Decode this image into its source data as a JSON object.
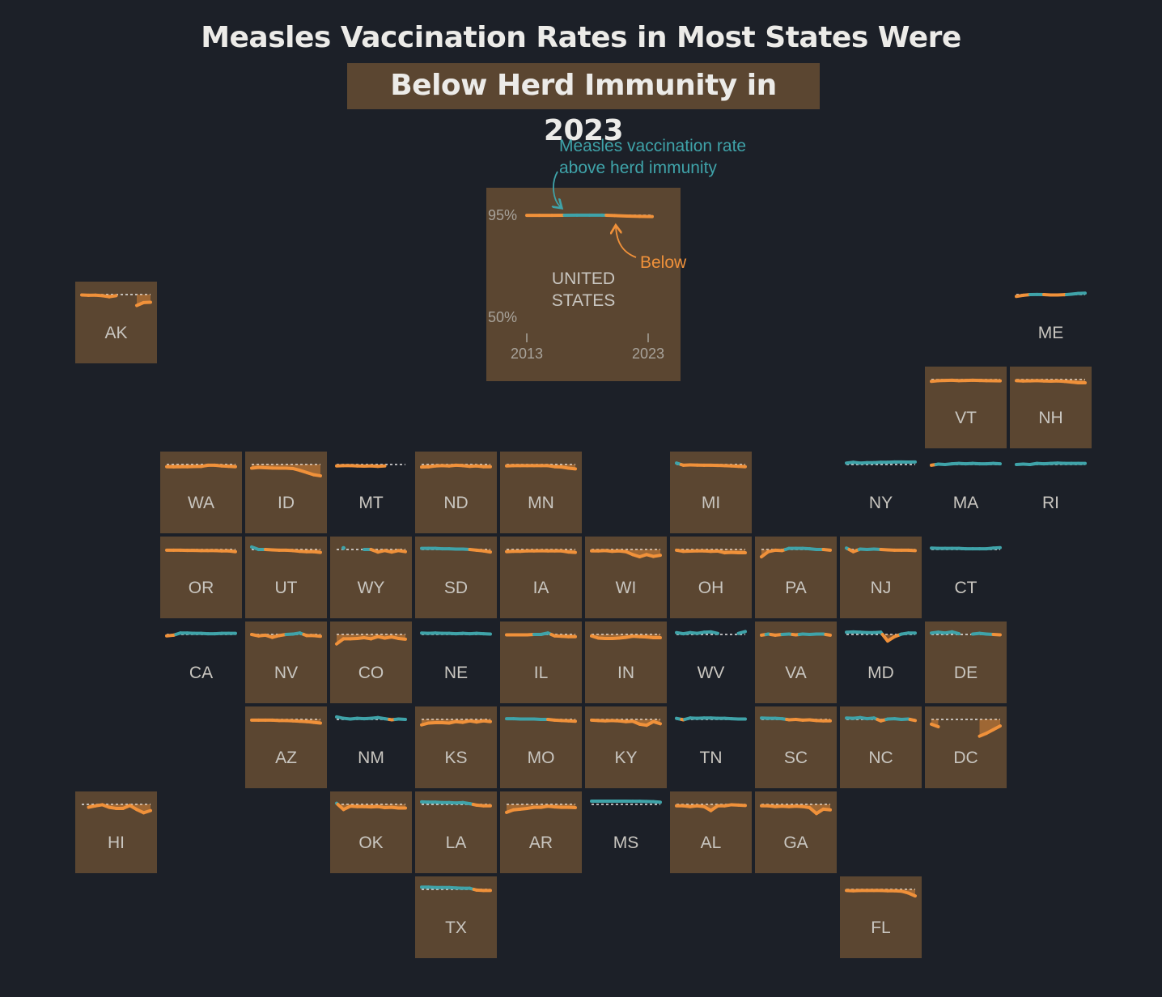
{
  "title_line1": "Measles Vaccination Rates in Most States Were",
  "title_line2": "Below Herd Immunity in 2023",
  "colors": {
    "background": "#1c2028",
    "tile_below": "#5b4631",
    "line_below": "#f0913a",
    "line_above": "#3fa3a9",
    "threshold": "#e6e6e6",
    "label": "#c9c6c0"
  },
  "chart_data": {
    "type": "line",
    "layout": "tile-grid map of US states, one small multiple per state",
    "threshold": 95,
    "ylim": [
      50,
      100
    ],
    "x": [
      2013,
      2014,
      2015,
      2016,
      2017,
      2018,
      2019,
      2020,
      2021,
      2022,
      2023
    ],
    "legend": {
      "above_label": "Measles vaccination rate above herd immunity",
      "below_label": "Below",
      "y_top_label": "95%",
      "y_bottom_label": "50%",
      "x_start_label": "2013",
      "x_end_label": "2023"
    },
    "national": {
      "name": "UNITED STATES",
      "line1": "UNITED",
      "line2": "STATES",
      "below_2023": true,
      "values": [
        94.8,
        94.8,
        94.9,
        95.0,
        95.1,
        95.1,
        95.2,
        94.6,
        93.9,
        93.5,
        93.2
      ]
    },
    "states": [
      {
        "code": "AK",
        "col": 0,
        "row": 0,
        "below_2023": true,
        "values": [
          94.5,
          94.0,
          94.2,
          93.5,
          92.0,
          93.5,
          null,
          null,
          80.0,
          84.0,
          84.5
        ]
      },
      {
        "code": "ME",
        "col": 11,
        "row": 0,
        "below_2023": false,
        "values": [
          92.5,
          94.0,
          95.0,
          95.2,
          95.0,
          94.5,
          94.5,
          94.8,
          95.5,
          96.5,
          97.0
        ]
      },
      {
        "code": "VT",
        "col": 10,
        "row": 1,
        "below_2023": true,
        "values": [
          92.5,
          93.5,
          93.8,
          94.0,
          93.5,
          93.8,
          94.0,
          93.7,
          93.5,
          93.3,
          93.2
        ]
      },
      {
        "code": "NH",
        "col": 11,
        "row": 1,
        "below_2023": true,
        "values": [
          93.5,
          93.0,
          93.2,
          93.5,
          93.0,
          92.8,
          93.0,
          92.5,
          91.5,
          90.5,
          90.5
        ]
      },
      {
        "code": "WA",
        "col": 1,
        "row": 2,
        "below_2023": true,
        "values": [
          92.0,
          91.8,
          92.0,
          92.0,
          92.2,
          92.3,
          94.0,
          94.0,
          93.0,
          92.5,
          92.0
        ]
      },
      {
        "code": "ID",
        "col": 2,
        "row": 2,
        "below_2023": true,
        "values": [
          90.0,
          91.0,
          90.5,
          90.2,
          90.0,
          90.0,
          89.5,
          87.0,
          84.0,
          81.0,
          79.5
        ]
      },
      {
        "code": "MT",
        "col": 3,
        "row": 2,
        "below_2023": false,
        "values": [
          93.0,
          93.5,
          93.5,
          93.0,
          92.8,
          93.0,
          92.5,
          93.0,
          null,
          null,
          null
        ]
      },
      {
        "code": "ND",
        "col": 4,
        "row": 2,
        "below_2023": true,
        "values": [
          91.5,
          91.8,
          93.0,
          93.5,
          93.0,
          94.0,
          93.5,
          92.5,
          93.0,
          92.0,
          92.0
        ]
      },
      {
        "code": "MN",
        "col": 5,
        "row": 2,
        "below_2023": true,
        "values": [
          93.0,
          93.5,
          93.5,
          93.5,
          93.5,
          93.5,
          93.5,
          92.0,
          91.5,
          90.0,
          89.0
        ]
      },
      {
        "code": "MI",
        "col": 7,
        "row": 2,
        "below_2023": true,
        "values": [
          97.0,
          94.0,
          94.5,
          94.2,
          94.0,
          94.0,
          93.8,
          93.5,
          93.0,
          92.5,
          92.0
        ]
      },
      {
        "code": "NY",
        "col": 9,
        "row": 2,
        "below_2023": false,
        "values": [
          97.0,
          98.0,
          97.0,
          97.5,
          97.5,
          98.0,
          98.0,
          98.5,
          98.5,
          98.3,
          98.5
        ]
      },
      {
        "code": "MA",
        "col": 10,
        "row": 2,
        "below_2023": false,
        "values": [
          94.0,
          95.5,
          95.0,
          96.0,
          96.5,
          96.0,
          96.5,
          96.0,
          96.0,
          96.5,
          96.0
        ]
      },
      {
        "code": "RI",
        "col": 11,
        "row": 2,
        "below_2023": false,
        "values": [
          95.0,
          95.5,
          95.0,
          96.5,
          96.0,
          96.5,
          97.0,
          96.5,
          96.5,
          96.5,
          96.5
        ]
      },
      {
        "code": "OR",
        "col": 1,
        "row": 3,
        "below_2023": true,
        "values": [
          94.0,
          94.0,
          94.0,
          93.8,
          93.8,
          93.5,
          93.5,
          93.5,
          93.0,
          93.0,
          92.0
        ]
      },
      {
        "code": "UT",
        "col": 2,
        "row": 3,
        "below_2023": true,
        "values": [
          98.5,
          95.0,
          95.0,
          94.5,
          94.0,
          94.0,
          93.5,
          92.5,
          92.0,
          92.0,
          91.0
        ]
      },
      {
        "code": "WY",
        "col": 3,
        "row": 3,
        "below_2023": true,
        "values": [
          null,
          97.0,
          null,
          null,
          95.0,
          95.0,
          91.5,
          93.5,
          91.5,
          93.5,
          92.0
        ]
      },
      {
        "code": "SD",
        "col": 4,
        "row": 3,
        "below_2023": true,
        "values": [
          96.5,
          96.5,
          96.5,
          96.0,
          96.0,
          95.5,
          95.5,
          95.0,
          94.0,
          93.0,
          91.5
        ]
      },
      {
        "code": "IA",
        "col": 5,
        "row": 3,
        "below_2023": true,
        "values": [
          92.0,
          92.5,
          92.5,
          93.0,
          93.0,
          93.2,
          93.0,
          93.0,
          93.0,
          91.5,
          91.0
        ]
      },
      {
        "code": "WI",
        "col": 6,
        "row": 3,
        "below_2023": true,
        "values": [
          93.0,
          93.0,
          93.5,
          92.5,
          93.0,
          92.0,
          88.0,
          85.0,
          88.0,
          85.5,
          87.0
        ]
      },
      {
        "code": "OH",
        "col": 7,
        "row": 3,
        "below_2023": true,
        "values": [
          94.0,
          92.5,
          92.8,
          93.0,
          93.0,
          92.5,
          92.8,
          90.5,
          91.0,
          90.5,
          90.5
        ]
      },
      {
        "code": "PA",
        "col": 8,
        "row": 3,
        "below_2023": true,
        "values": [
          85.0,
          92.0,
          94.0,
          93.5,
          96.5,
          96.5,
          96.5,
          96.0,
          95.0,
          95.0,
          94.0
        ]
      },
      {
        "code": "NJ",
        "col": 9,
        "row": 3,
        "below_2023": true,
        "values": [
          97.0,
          92.0,
          95.5,
          95.0,
          95.5,
          95.0,
          94.5,
          94.0,
          94.0,
          94.0,
          93.5
        ]
      },
      {
        "code": "CT",
        "col": 10,
        "row": 3,
        "below_2023": false,
        "values": [
          97.0,
          96.5,
          96.5,
          96.5,
          96.5,
          96.0,
          96.0,
          96.0,
          96.0,
          97.0,
          97.5
        ]
      },
      {
        "code": "CA",
        "col": 1,
        "row": 4,
        "below_2023": false,
        "values": [
          93.0,
          94.0,
          97.0,
          97.0,
          96.5,
          96.5,
          96.0,
          96.0,
          96.5,
          96.5,
          96.5
        ]
      },
      {
        "code": "NV",
        "col": 2,
        "row": 4,
        "below_2023": true,
        "values": [
          95.0,
          93.0,
          94.0,
          91.0,
          93.5,
          95.0,
          95.5,
          97.0,
          93.5,
          93.5,
          92.5
        ]
      },
      {
        "code": "CO",
        "col": 3,
        "row": 4,
        "below_2023": true,
        "values": [
          82.0,
          89.0,
          89.0,
          89.5,
          90.5,
          89.0,
          92.0,
          90.0,
          91.5,
          89.5,
          88.5
        ]
      },
      {
        "code": "NE",
        "col": 4,
        "row": 4,
        "below_2023": false,
        "values": [
          97.0,
          96.5,
          97.0,
          96.5,
          96.5,
          96.0,
          96.5,
          96.0,
          96.5,
          96.0,
          95.5
        ]
      },
      {
        "code": "IL",
        "col": 5,
        "row": 4,
        "below_2023": true,
        "values": [
          94.5,
          94.5,
          94.5,
          94.5,
          95.0,
          95.0,
          97.0,
          93.0,
          92.5,
          92.0,
          92.0
        ]
      },
      {
        "code": "IN",
        "col": 6,
        "row": 4,
        "below_2023": true,
        "values": [
          93.0,
          90.0,
          89.5,
          89.5,
          90.0,
          91.0,
          92.5,
          92.0,
          91.5,
          90.5,
          90.5
        ]
      },
      {
        "code": "WV",
        "col": 7,
        "row": 4,
        "below_2023": false,
        "values": [
          97.5,
          96.0,
          97.5,
          96.5,
          98.0,
          98.5,
          96.5,
          null,
          null,
          96.5,
          99.0
        ]
      },
      {
        "code": "VA",
        "col": 8,
        "row": 4,
        "below_2023": true,
        "values": [
          94.0,
          95.5,
          94.0,
          95.0,
          95.5,
          94.5,
          95.5,
          95.0,
          95.5,
          95.5,
          94.0
        ]
      },
      {
        "code": "MD",
        "col": 9,
        "row": 4,
        "below_2023": false,
        "values": [
          98.0,
          98.5,
          98.0,
          97.5,
          97.5,
          98.0,
          86.0,
          92.0,
          95.5,
          97.0,
          97.0
        ]
      },
      {
        "code": "DE",
        "col": 10,
        "row": 4,
        "below_2023": true,
        "values": [
          97.0,
          98.0,
          97.0,
          98.5,
          96.0,
          null,
          95.5,
          96.5,
          95.5,
          95.0,
          94.5
        ]
      },
      {
        "code": "AZ",
        "col": 2,
        "row": 5,
        "below_2023": true,
        "values": [
          94.0,
          94.0,
          94.0,
          94.0,
          93.5,
          93.5,
          93.0,
          92.5,
          92.0,
          91.0,
          90.0
        ]
      },
      {
        "code": "NM",
        "col": 3,
        "row": 5,
        "below_2023": false,
        "values": [
          98.5,
          96.5,
          95.5,
          96.5,
          96.0,
          96.5,
          97.5,
          96.0,
          94.5,
          95.5,
          95.0
        ]
      },
      {
        "code": "KS",
        "col": 4,
        "row": 5,
        "below_2023": true,
        "values": [
          87.5,
          90.0,
          90.5,
          90.5,
          90.0,
          92.0,
          91.0,
          93.0,
          91.5,
          93.0,
          92.0
        ]
      },
      {
        "code": "MO",
        "col": 5,
        "row": 5,
        "below_2023": true,
        "values": [
          96.0,
          96.0,
          95.5,
          95.5,
          95.5,
          95.0,
          95.0,
          94.0,
          93.5,
          93.0,
          92.5
        ]
      },
      {
        "code": "KY",
        "col": 6,
        "row": 5,
        "below_2023": true,
        "values": [
          94.0,
          93.5,
          93.0,
          93.5,
          93.0,
          92.0,
          92.5,
          88.5,
          87.0,
          92.0,
          89.0
        ]
      },
      {
        "code": "TN",
        "col": 7,
        "row": 5,
        "below_2023": false,
        "values": [
          96.5,
          94.5,
          97.0,
          96.5,
          97.0,
          97.0,
          96.5,
          96.5,
          96.0,
          95.5,
          95.5
        ]
      },
      {
        "code": "SC",
        "col": 8,
        "row": 5,
        "below_2023": true,
        "values": [
          97.0,
          96.5,
          96.5,
          96.0,
          94.5,
          95.0,
          94.0,
          94.5,
          93.5,
          93.0,
          93.0
        ]
      },
      {
        "code": "NC",
        "col": 9,
        "row": 5,
        "below_2023": true,
        "values": [
          97.0,
          96.5,
          97.5,
          96.0,
          97.0,
          93.0,
          95.5,
          96.0,
          95.0,
          95.5,
          93.5
        ]
      },
      {
        "code": "DC",
        "col": 10,
        "row": 5,
        "below_2023": true,
        "values": [
          88.5,
          85.0,
          null,
          null,
          null,
          null,
          null,
          72.0,
          76.0,
          81.0,
          86.0
        ]
      },
      {
        "code": "HI",
        "col": 0,
        "row": 6,
        "below_2023": true,
        "values": [
          null,
          91.0,
          93.0,
          94.5,
          91.0,
          89.5,
          89.5,
          93.5,
          88.0,
          83.5,
          86.5
        ]
      },
      {
        "code": "OK",
        "col": 3,
        "row": 6,
        "below_2023": true,
        "values": [
          96.5,
          88.0,
          92.5,
          92.0,
          92.0,
          91.5,
          92.0,
          90.5,
          91.0,
          90.0,
          90.0
        ]
      },
      {
        "code": "LA",
        "col": 4,
        "row": 6,
        "below_2023": true,
        "values": [
          98.5,
          98.0,
          98.0,
          97.5,
          97.5,
          97.0,
          97.5,
          96.0,
          94.0,
          93.0,
          93.0
        ]
      },
      {
        "code": "AR",
        "col": 5,
        "row": 6,
        "below_2023": true,
        "values": [
          84.0,
          87.5,
          88.5,
          89.5,
          91.0,
          91.0,
          92.5,
          91.5,
          91.0,
          91.0,
          90.5
        ]
      },
      {
        "code": "MS",
        "col": 6,
        "row": 6,
        "below_2023": false,
        "values": [
          99.5,
          99.5,
          99.5,
          99.5,
          99.5,
          99.5,
          99.3,
          99.3,
          99.0,
          98.7,
          98.0
        ]
      },
      {
        "code": "AL",
        "col": 7,
        "row": 6,
        "below_2023": true,
        "values": [
          93.0,
          93.0,
          92.0,
          93.0,
          92.0,
          86.5,
          93.0,
          93.0,
          94.5,
          94.0,
          93.5
        ]
      },
      {
        "code": "GA",
        "col": 8,
        "row": 6,
        "below_2023": true,
        "values": [
          93.0,
          93.0,
          92.0,
          92.5,
          92.0,
          92.5,
          92.0,
          90.5,
          82.5,
          88.5,
          87.5
        ]
      },
      {
        "code": "TX",
        "col": 4,
        "row": 7,
        "below_2023": true,
        "values": [
          98.0,
          98.0,
          97.5,
          97.5,
          97.5,
          97.0,
          96.5,
          96.5,
          94.0,
          93.5,
          93.5
        ]
      },
      {
        "code": "FL",
        "col": 9,
        "row": 7,
        "below_2023": true,
        "values": [
          93.5,
          93.0,
          93.5,
          93.5,
          93.5,
          93.5,
          93.0,
          93.0,
          92.5,
          90.0,
          86.0
        ]
      }
    ]
  }
}
